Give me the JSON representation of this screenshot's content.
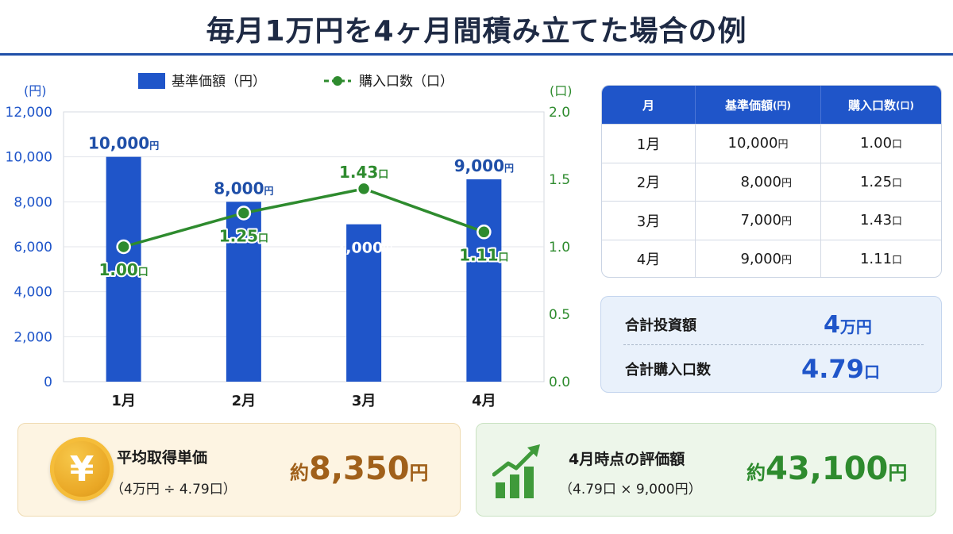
{
  "title": "毎月1万円を4ヶ月間積み立てた場合の例",
  "chart_data": {
    "type": "bar",
    "categories": [
      "1月",
      "2月",
      "3月",
      "4月"
    ],
    "series": [
      {
        "name": "基準価額（円）",
        "type": "bar",
        "axis": "left",
        "values": [
          10000,
          8000,
          7000,
          9000
        ],
        "labels": [
          "10,000",
          "8,000",
          "7,000",
          "9,000"
        ],
        "label_unit": "円",
        "color": "#1f55c9"
      },
      {
        "name": "購入口数（口）",
        "type": "line",
        "axis": "right",
        "values": [
          1.0,
          1.25,
          1.43,
          1.11
        ],
        "labels": [
          "1.00",
          "1.25",
          "1.43",
          "1.11"
        ],
        "label_unit": "口",
        "color": "#2e8b2e"
      }
    ],
    "y_left": {
      "unit": "(円)",
      "ylim": [
        0,
        12000
      ],
      "ticks": [
        "0",
        "2,000",
        "4,000",
        "6,000",
        "8,000",
        "10,000",
        "12,000"
      ]
    },
    "y_right": {
      "unit": "(口)",
      "ylim": [
        0,
        2.0
      ],
      "ticks": [
        "0.0",
        "0.5",
        "1.0",
        "1.5",
        "2.0"
      ]
    },
    "grid": true,
    "legend": "top"
  },
  "table": {
    "headers": [
      "月",
      "基準価額",
      "購入口数"
    ],
    "header_units": [
      "",
      "(円)",
      "(口)"
    ],
    "rows": [
      {
        "month": "1月",
        "price": "10,000",
        "price_unit": "円",
        "units": "1.00",
        "units_unit": "口"
      },
      {
        "month": "2月",
        "price": "8,000",
        "price_unit": "円",
        "units": "1.25",
        "units_unit": "口"
      },
      {
        "month": "3月",
        "price": "7,000",
        "price_unit": "円",
        "units": "1.43",
        "units_unit": "口"
      },
      {
        "month": "4月",
        "price": "9,000",
        "price_unit": "円",
        "units": "1.11",
        "units_unit": "口"
      }
    ]
  },
  "summary": {
    "invest_label": "合計投資額",
    "invest_value": "4",
    "invest_unit": "万円",
    "units_label": "合計購入口数",
    "units_value": "4.79",
    "units_unit": "口"
  },
  "avg_card": {
    "icon": "yen-coin-icon",
    "icon_glyph": "¥",
    "title": "平均取得単価",
    "formula": "（4万円 ÷ 4.79口）",
    "prefix": "約",
    "value": "8,350",
    "unit": "円"
  },
  "eval_card": {
    "icon": "growth-chart-icon",
    "title": "4月時点の評価額",
    "formula": "（4.79口 × 9,000円）",
    "prefix": "約",
    "value": "43,100",
    "unit": "円"
  },
  "colors": {
    "blue": "#1f55c9",
    "green": "#2e8b2e",
    "brown": "#a0601a",
    "navy": "#1e2a44"
  }
}
